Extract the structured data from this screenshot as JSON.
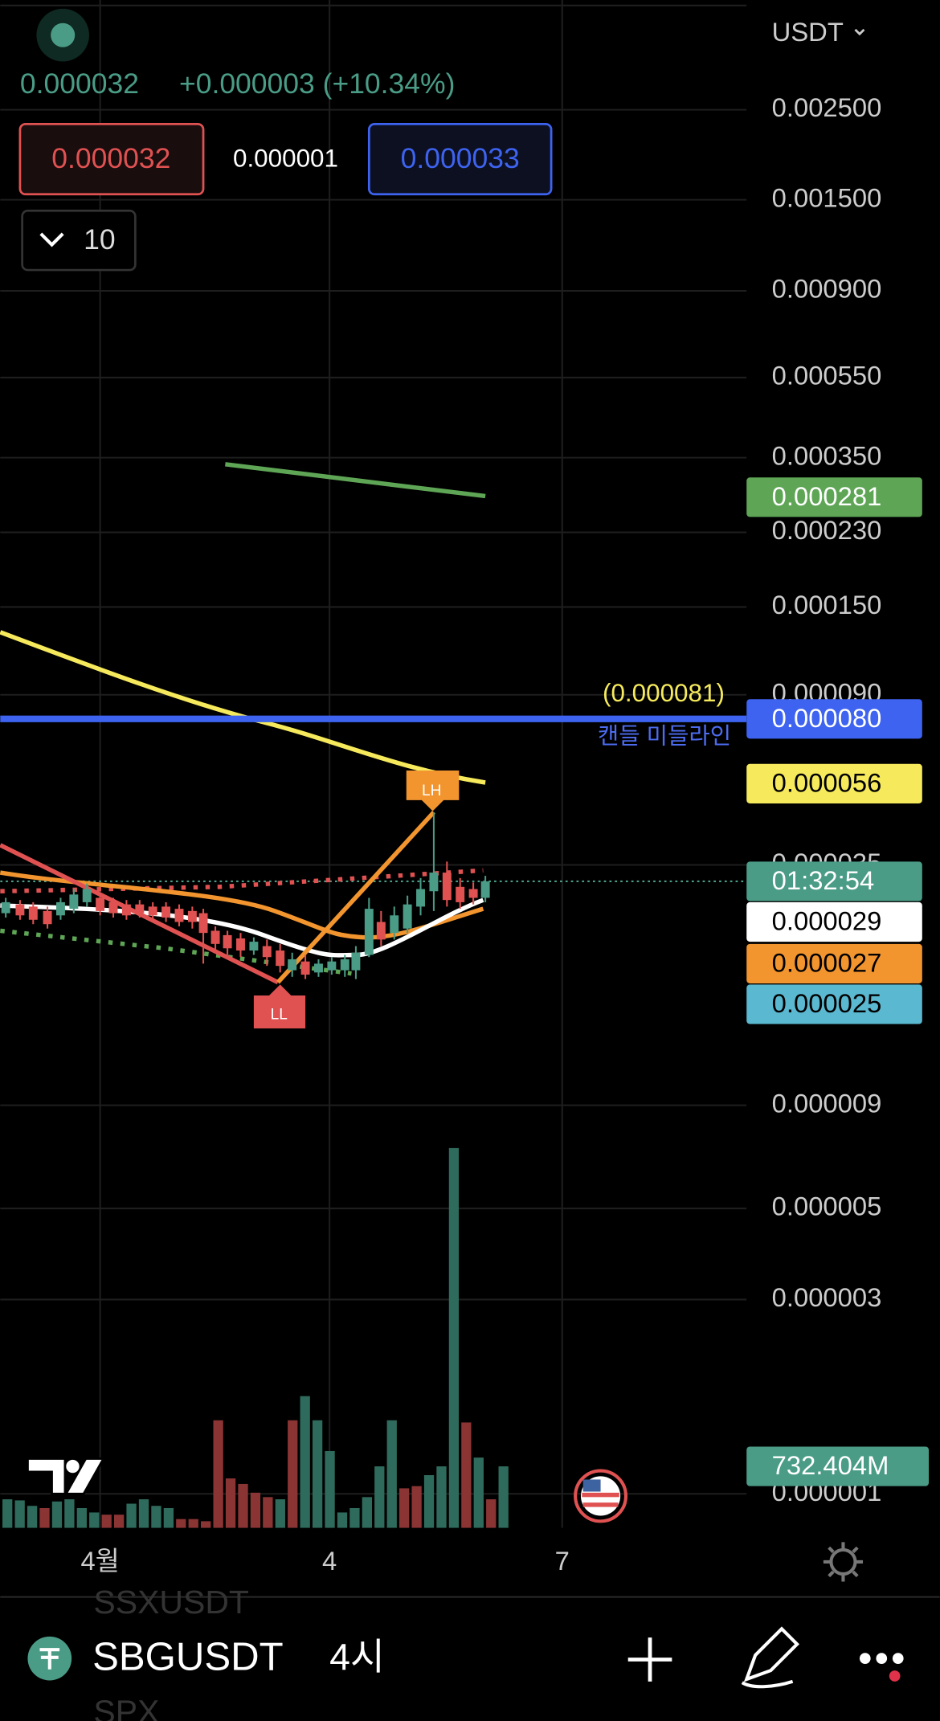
{
  "header": {
    "price": "0.000032",
    "change": "+0.000003 (+10.34%)",
    "sell": "0.000032",
    "spread": "0.000001",
    "buy": "0.000033",
    "interval_count": "10"
  },
  "price_axis": {
    "currency": "USDT",
    "labels": [
      "0.002500",
      "0.001500",
      "0.000900",
      "0.000550",
      "0.000350",
      "0.000230",
      "0.000150",
      "0.000090",
      "0.000035",
      "0.000009",
      "0.000005",
      "0.000003",
      "0.000001"
    ]
  },
  "badges": [
    {
      "label": "0.000281",
      "color": "#5ea655",
      "text_color": "#ffffff"
    },
    {
      "label": "0.000080",
      "color": "#3d63f0",
      "text_color": "#ffffff"
    },
    {
      "label": "0.000056",
      "color": "#f6ea5c",
      "text_color": "#000000"
    },
    {
      "label": "01:32:54",
      "color": "#4a9c86",
      "text_color": "#ffffff"
    },
    {
      "label": "0.000029",
      "color": "#ffffff",
      "text_color": "#000000"
    },
    {
      "label": "0.000027",
      "color": "#f2952f",
      "text_color": "#000000"
    },
    {
      "label": "0.000025",
      "color": "#5ab8d0",
      "text_color": "#000000"
    },
    {
      "label": "732.404M",
      "color": "#4a9c86",
      "text_color": "#ffffff"
    }
  ],
  "annotations": {
    "middle_value": "(0.000081)",
    "middle_label": "캔들 미들라인",
    "lh": "LH",
    "ll": "LL"
  },
  "time_axis": {
    "labels": [
      "4월",
      "4",
      "7"
    ]
  },
  "bottom_bar": {
    "symbol": "SBGUSDT",
    "interval": "4시",
    "ghost_symbols": [
      "SSXUSDT",
      "SPX"
    ]
  }
}
